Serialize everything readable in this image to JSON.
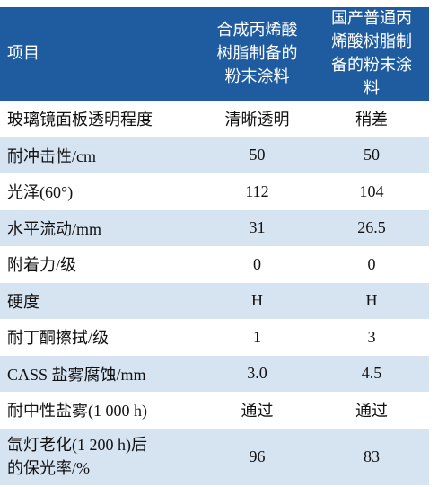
{
  "table": {
    "header": [
      "项目",
      "合成丙烯酸树脂制备的粉末涂料",
      "国产普通丙烯酸树脂制备的粉末涂料"
    ],
    "rows": [
      [
        "玻璃镜面板透明程度",
        "清晰透明",
        "稍差"
      ],
      [
        "耐冲击性/cm",
        "50",
        "50"
      ],
      [
        "光泽(60°)",
        "112",
        "104"
      ],
      [
        "水平流动/mm",
        "31",
        "26.5"
      ],
      [
        "附着力/级",
        "0",
        "0"
      ],
      [
        "硬度",
        "H",
        "H"
      ],
      [
        "耐丁酮擦拭/级",
        "1",
        "3"
      ],
      [
        "CASS 盐雾腐蚀/mm",
        "3.0",
        "4.5"
      ],
      [
        "耐中性盐雾(1 000 h)",
        "通过",
        "通过"
      ],
      [
        "氙灯老化(1 200 h)后的保光率/%",
        "96",
        "83"
      ]
    ]
  }
}
